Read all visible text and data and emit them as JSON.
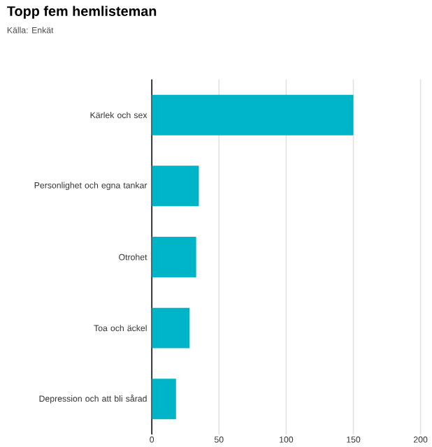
{
  "chart_data": {
    "type": "bar",
    "orientation": "horizontal",
    "title": "Topp fem hemlisteman",
    "subtitle": "Källa: Enkät",
    "categories": [
      "Kärlek och sex",
      "Personlighet och egna tankar",
      "Otrohet",
      "Toa och äckel",
      "Depression och att bli sårad"
    ],
    "values": [
      150,
      35,
      33,
      28,
      18
    ],
    "color": "#00b4c8",
    "xlim": [
      0,
      200
    ],
    "xticks": [
      0,
      50,
      100,
      150,
      200
    ],
    "grid": "x"
  }
}
